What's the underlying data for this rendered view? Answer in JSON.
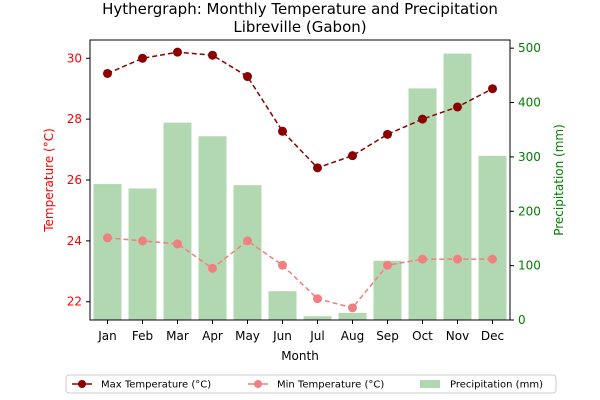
{
  "chart_data": {
    "type": "bar+line",
    "title": "Hythergraph: Monthly Temperature and Precipitation",
    "subtitle": "Libreville (Gabon)",
    "xlabel": "Month",
    "ylabel_left": "Temperature (°C)",
    "ylabel_right": "Precipitation (mm)",
    "categories": [
      "Jan",
      "Feb",
      "Mar",
      "Apr",
      "May",
      "Jun",
      "Jul",
      "Aug",
      "Sep",
      "Oct",
      "Nov",
      "Dec"
    ],
    "ylim_left": [
      21.4,
      30.6
    ],
    "ylim_right": [
      0,
      515
    ],
    "yticks_left": [
      22,
      24,
      26,
      28,
      30
    ],
    "yticks_right": [
      0,
      100,
      200,
      300,
      400,
      500
    ],
    "series": [
      {
        "name": "Max Temperature (°C)",
        "kind": "line",
        "axis": "left",
        "color": "#8b0000",
        "values": [
          29.5,
          30.0,
          30.2,
          30.1,
          29.4,
          27.6,
          26.4,
          26.8,
          27.5,
          28.0,
          28.4,
          29.0
        ]
      },
      {
        "name": "Min Temperature (°C)",
        "kind": "line",
        "axis": "left",
        "color": "#f08080",
        "values": [
          24.1,
          24.0,
          23.9,
          23.1,
          24.0,
          23.2,
          22.1,
          21.8,
          23.2,
          23.4,
          23.4,
          23.4
        ]
      },
      {
        "name": "Precipitation (mm)",
        "kind": "bar",
        "axis": "right",
        "color": "#b2d8b2",
        "values": [
          250,
          242,
          363,
          338,
          248,
          53,
          7,
          13,
          109,
          426,
          490,
          302
        ]
      }
    ],
    "left_axis_color": "#ff0000",
    "right_axis_color": "#008000",
    "legend_position": "bottom-center"
  }
}
